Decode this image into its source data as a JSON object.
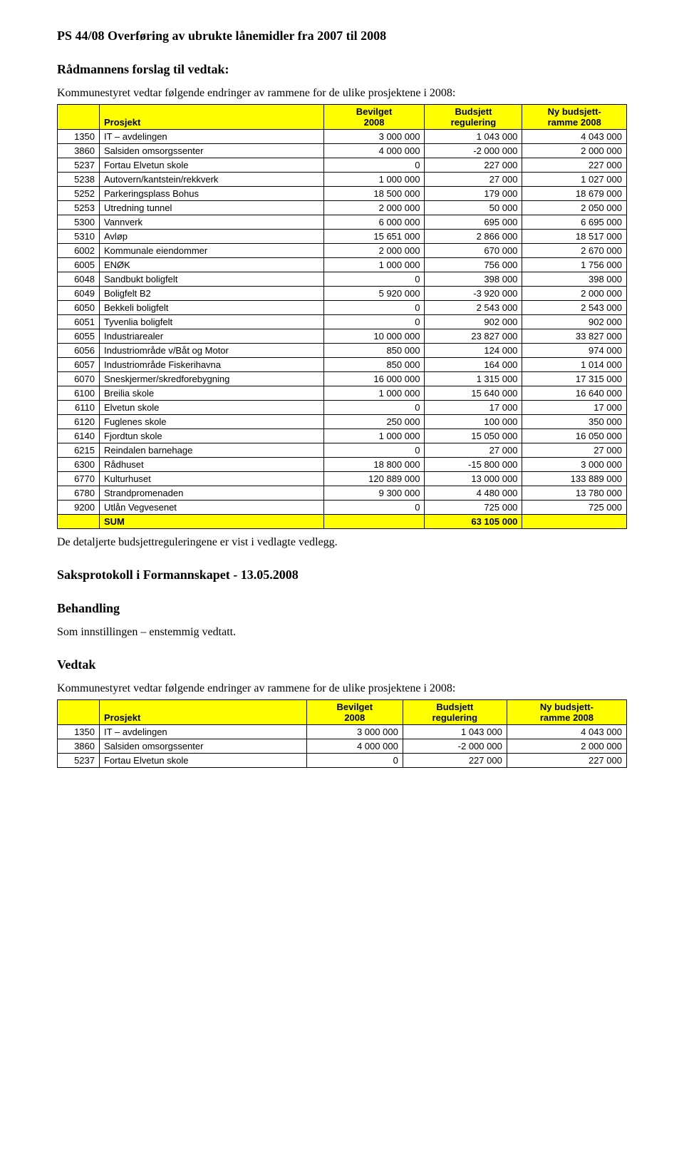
{
  "title": "PS 44/08 Overføring av ubrukte lånemidler fra 2007 til 2008",
  "section_radmann": "Rådmannens forslag til vedtak:",
  "intro_radmann": "Kommunestyret vedtar følgende endringer av rammene for de ulike prosjektene i 2008:",
  "footer_line": "De detaljerte budsjettreguleringene er vist i vedlagte vedlegg.",
  "section_saksprot": "Saksprotokoll i Formannskapet - 13.05.2008",
  "section_behandling": "Behandling",
  "behandling_text": "Som innstillingen – enstemmig vedtatt.",
  "section_vedtak": "Vedtak",
  "intro_vedtak": "Kommunestyret vedtar følgende endringer av rammene for de ulike prosjektene i 2008:",
  "table_header_colors": {
    "bg": "#ffff00",
    "border": "#000000"
  },
  "columns": {
    "prosjekt": "Prosjekt",
    "bevilget": "Bevilget\n2008",
    "budsjett": "Budsjett\nregulering",
    "nyramme": "Ny budsjett-\nramme 2008"
  },
  "rows": [
    {
      "id": "1350",
      "name": "IT – avdelingen",
      "bev": "3 000 000",
      "reg": "1 043 000",
      "ny": "4 043 000"
    },
    {
      "id": "3860",
      "name": "Salsiden omsorgssenter",
      "bev": "4 000 000",
      "reg": "-2 000 000",
      "ny": "2 000 000"
    },
    {
      "id": "5237",
      "name": "Fortau Elvetun skole",
      "bev": "0",
      "reg": "227 000",
      "ny": "227 000"
    },
    {
      "id": "5238",
      "name": "Autovern/kantstein/rekkverk",
      "bev": "1 000 000",
      "reg": "27 000",
      "ny": "1 027 000"
    },
    {
      "id": "5252",
      "name": "Parkeringsplass Bohus",
      "bev": "18 500 000",
      "reg": "179 000",
      "ny": "18 679 000"
    },
    {
      "id": "5253",
      "name": "Utredning tunnel",
      "bev": "2 000 000",
      "reg": "50 000",
      "ny": "2 050 000"
    },
    {
      "id": "5300",
      "name": "Vannverk",
      "bev": "6 000 000",
      "reg": "695 000",
      "ny": "6 695 000"
    },
    {
      "id": "5310",
      "name": "Avløp",
      "bev": "15 651 000",
      "reg": "2 866 000",
      "ny": "18 517 000"
    },
    {
      "id": "6002",
      "name": "Kommunale eiendommer",
      "bev": "2 000 000",
      "reg": "670 000",
      "ny": "2 670 000"
    },
    {
      "id": "6005",
      "name": "ENØK",
      "bev": "1 000 000",
      "reg": "756 000",
      "ny": "1 756 000"
    },
    {
      "id": "6048",
      "name": "Sandbukt boligfelt",
      "bev": "0",
      "reg": "398 000",
      "ny": "398 000"
    },
    {
      "id": "6049",
      "name": "Boligfelt B2",
      "bev": "5 920 000",
      "reg": "-3 920 000",
      "ny": "2 000 000"
    },
    {
      "id": "6050",
      "name": "Bekkeli boligfelt",
      "bev": "0",
      "reg": "2 543 000",
      "ny": "2 543 000"
    },
    {
      "id": "6051",
      "name": "Tyvenlia boligfelt",
      "bev": "0",
      "reg": "902 000",
      "ny": "902 000"
    },
    {
      "id": "6055",
      "name": "Industriarealer",
      "bev": "10 000 000",
      "reg": "23 827 000",
      "ny": "33 827 000"
    },
    {
      "id": "6056",
      "name": "Industriområde v/Båt og Motor",
      "bev": "850 000",
      "reg": "124 000",
      "ny": "974 000"
    },
    {
      "id": "6057",
      "name": "Industriområde Fiskerihavna",
      "bev": "850 000",
      "reg": "164 000",
      "ny": "1 014 000"
    },
    {
      "id": "6070",
      "name": "Sneskjermer/skredforebygning",
      "bev": "16 000 000",
      "reg": "1 315 000",
      "ny": "17 315 000"
    },
    {
      "id": "6100",
      "name": "Breilia skole",
      "bev": "1 000 000",
      "reg": "15 640 000",
      "ny": "16 640 000"
    },
    {
      "id": "6110",
      "name": "Elvetun skole",
      "bev": "0",
      "reg": "17 000",
      "ny": "17 000"
    },
    {
      "id": "6120",
      "name": "Fuglenes skole",
      "bev": "250 000",
      "reg": "100 000",
      "ny": "350 000"
    },
    {
      "id": "6140",
      "name": "Fjordtun skole",
      "bev": "1 000 000",
      "reg": "15 050 000",
      "ny": "16 050 000"
    },
    {
      "id": "6215",
      "name": "Reindalen barnehage",
      "bev": "0",
      "reg": "27 000",
      "ny": "27 000"
    },
    {
      "id": "6300",
      "name": "Rådhuset",
      "bev": "18 800 000",
      "reg": "-15 800 000",
      "ny": "3 000 000"
    },
    {
      "id": "6770",
      "name": "Kulturhuset",
      "bev": "120 889 000",
      "reg": "13 000 000",
      "ny": "133 889 000"
    },
    {
      "id": "6780",
      "name": "Strandpromenaden",
      "bev": "9 300 000",
      "reg": "4 480 000",
      "ny": "13 780 000"
    },
    {
      "id": "9200",
      "name": "Utlån Vegvesenet",
      "bev": "0",
      "reg": "725 000",
      "ny": "725 000"
    }
  ],
  "sum_row": {
    "label": "SUM",
    "reg": "63 105 000"
  },
  "rows_short": [
    {
      "id": "1350",
      "name": "IT – avdelingen",
      "bev": "3 000 000",
      "reg": "1 043 000",
      "ny": "4 043 000"
    },
    {
      "id": "3860",
      "name": "Salsiden omsorgssenter",
      "bev": "4 000 000",
      "reg": "-2 000 000",
      "ny": "2 000 000"
    },
    {
      "id": "5237",
      "name": "Fortau Elvetun skole",
      "bev": "0",
      "reg": "227 000",
      "ny": "227 000"
    }
  ]
}
